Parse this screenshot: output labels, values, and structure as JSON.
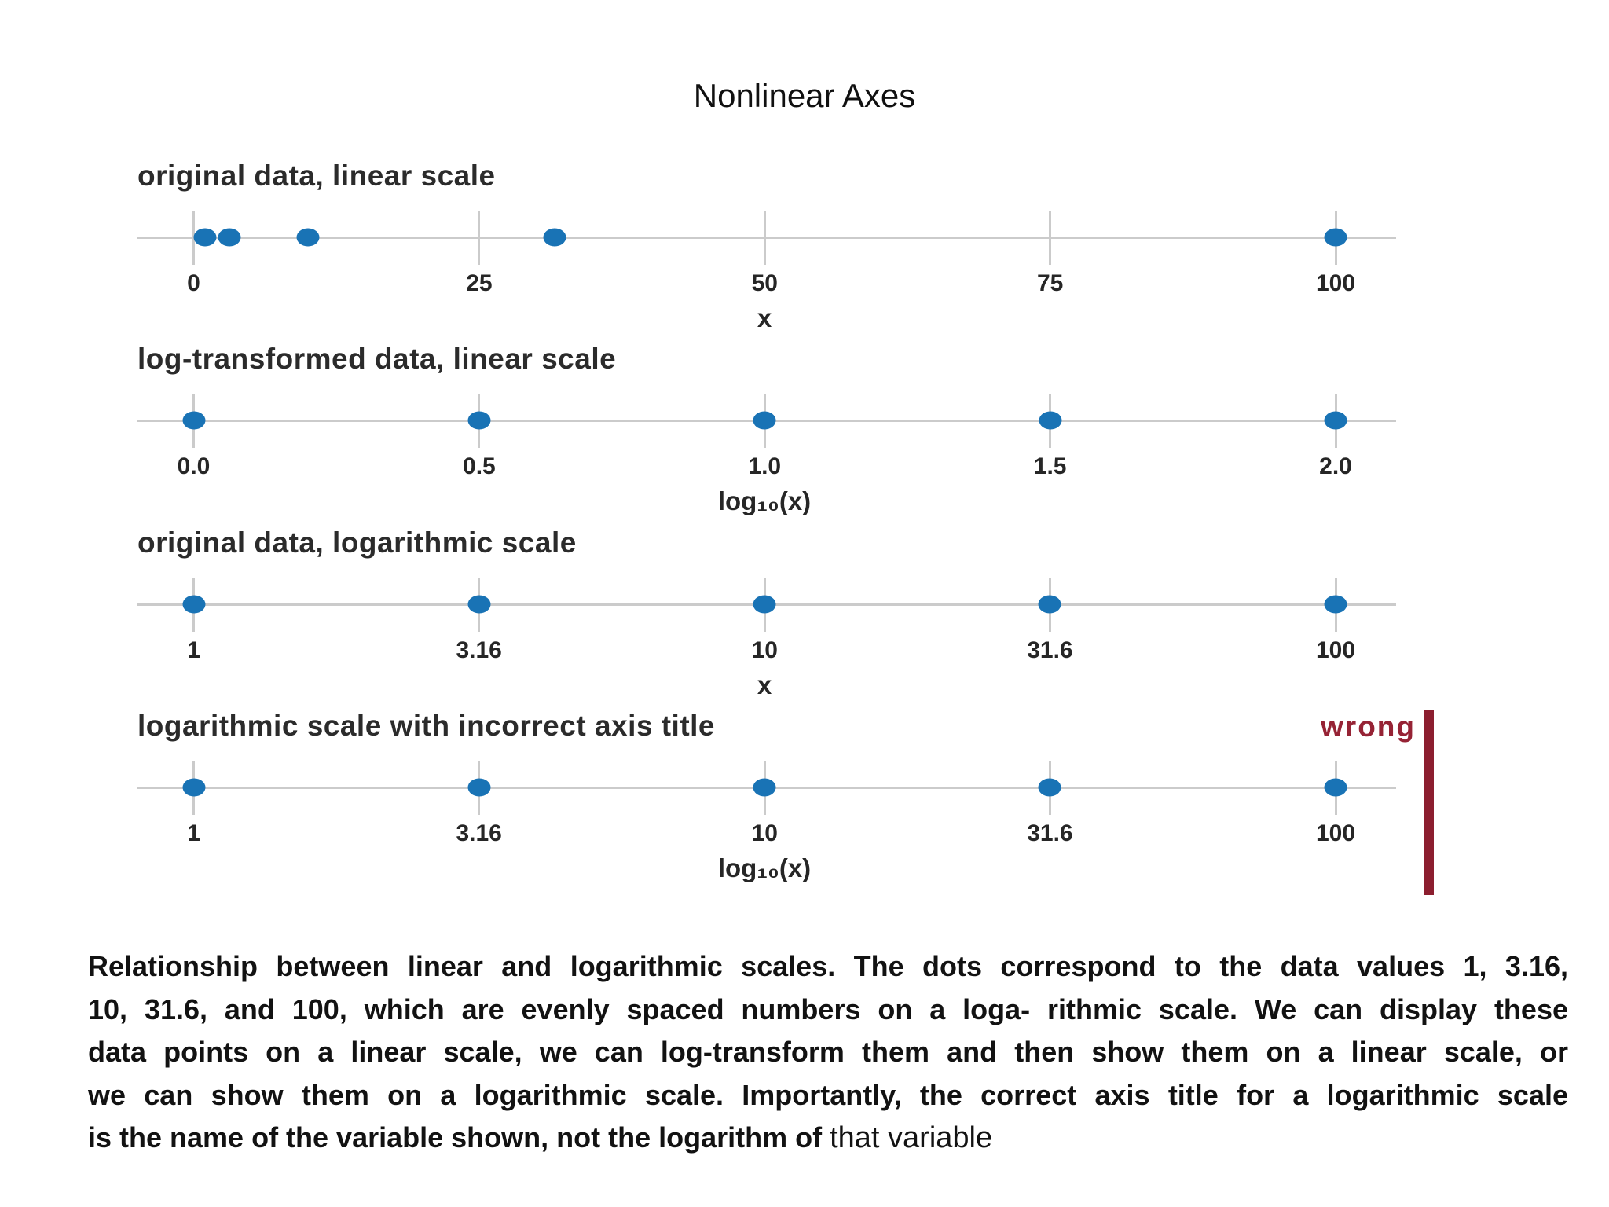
{
  "title": "Nonlinear Axes",
  "colors": {
    "dot_blue": "#1973b5",
    "axis_gray": "#cbcbcb",
    "wrong_red": "#962335",
    "bar_red": "#8c1e2f"
  },
  "chart_data": [
    {
      "type": "scatter",
      "panel_title": "original data, linear scale",
      "scale": "linear",
      "x": [
        1,
        3.16,
        10,
        31.6,
        100
      ],
      "tick_values": [
        0,
        25,
        50,
        75,
        100
      ],
      "tick_labels": [
        "0",
        "25",
        "50",
        "75",
        "100"
      ],
      "xlabel": "x",
      "grid": "ticks-only",
      "legend": "none"
    },
    {
      "type": "scatter",
      "panel_title": "log-transformed data, linear scale",
      "scale": "linear",
      "x": [
        0,
        0.5,
        1,
        1.5,
        2
      ],
      "tick_values": [
        0,
        0.5,
        1,
        1.5,
        2
      ],
      "tick_labels": [
        "0.0",
        "0.5",
        "1.0",
        "1.5",
        "2.0"
      ],
      "xlabel": "log₁₀(x)",
      "grid": "ticks-only",
      "legend": "none"
    },
    {
      "type": "scatter",
      "panel_title": "original data, logarithmic scale",
      "scale": "log",
      "x": [
        1,
        3.16,
        10,
        31.6,
        100
      ],
      "tick_values": [
        1,
        3.16,
        10,
        31.6,
        100
      ],
      "tick_labels": [
        "1",
        "3.16",
        "10",
        "31.6",
        "100"
      ],
      "xlabel": "x",
      "grid": "ticks-only",
      "legend": "none"
    },
    {
      "type": "scatter",
      "panel_title": "logarithmic scale with incorrect axis title",
      "scale": "log",
      "x": [
        1,
        3.16,
        10,
        31.6,
        100
      ],
      "tick_values": [
        1,
        3.16,
        10,
        31.6,
        100
      ],
      "tick_labels": [
        "1",
        "3.16",
        "10",
        "31.6",
        "100"
      ],
      "xlabel": "log₁₀(x)",
      "annotation": "wrong",
      "grid": "ticks-only",
      "legend": "none"
    }
  ],
  "caption": {
    "lines": [
      "Relationship between linear and logarithmic scales. The dots correspond to the data values 1, 3.16,",
      "10, 31.6, and 100, which are evenly spaced numbers on a loga- rithmic scale. We can display these",
      "data points on a linear scale, we can log-transform them and then show them on a linear scale, or",
      "we can show them on a logarithmic scale. Importantly, the correct axis title for a logarithmic scale"
    ],
    "last_line": "is the name of the variable shown, not the logarithm of ",
    "last_line_tail": "that variable"
  }
}
